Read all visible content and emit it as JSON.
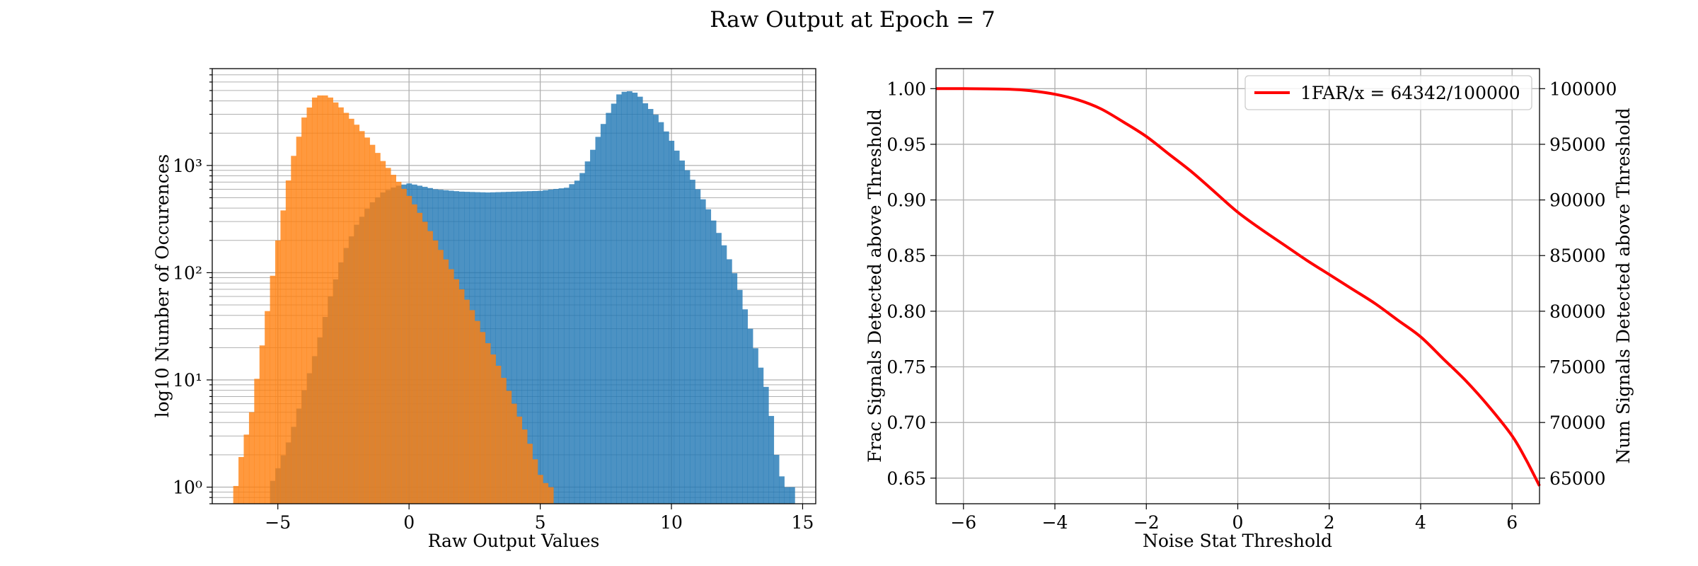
{
  "figure": {
    "title": "Raw Output at Epoch = 7"
  },
  "chart_data": [
    {
      "type": "histogram",
      "xlabel": "Raw Output Values",
      "ylabel": "log10 Number of Occurences",
      "yscale": "log",
      "xlim": [
        -7.5,
        15.5
      ],
      "ylim": [
        0.7,
        8000
      ],
      "xticks": [
        -5,
        0,
        5,
        10,
        15
      ],
      "xtick_labels": [
        "−5",
        "0",
        "5",
        "10",
        "15"
      ],
      "yticks": [
        1,
        10,
        100,
        1000
      ],
      "ytick_labels": [
        "10⁰",
        "10¹",
        "10²",
        "10³"
      ],
      "grid": true,
      "series": [
        {
          "color": "#1f77b4",
          "alpha": 0.8,
          "curve": [
            [
              -5.3,
              1
            ],
            [
              -5,
              1.5
            ],
            [
              -4.5,
              3
            ],
            [
              -4,
              8
            ],
            [
              -3.5,
              20
            ],
            [
              -3,
              60
            ],
            [
              -2.5,
              150
            ],
            [
              -2,
              280
            ],
            [
              -1.5,
              430
            ],
            [
              -1,
              560
            ],
            [
              -0.5,
              640
            ],
            [
              0,
              680
            ],
            [
              0.5,
              640
            ],
            [
              1,
              600
            ],
            [
              2,
              570
            ],
            [
              3,
              560
            ],
            [
              4,
              570
            ],
            [
              5,
              580
            ],
            [
              6,
              620
            ],
            [
              6.5,
              750
            ],
            [
              7,
              1400
            ],
            [
              7.5,
              2800
            ],
            [
              8,
              4600
            ],
            [
              8.3,
              5000
            ],
            [
              8.7,
              4700
            ],
            [
              9,
              3800
            ],
            [
              9.5,
              2800
            ],
            [
              10,
              1700
            ],
            [
              10.5,
              1000
            ],
            [
              11,
              600
            ],
            [
              11.5,
              350
            ],
            [
              12,
              180
            ],
            [
              12.5,
              85
            ],
            [
              13,
              30
            ],
            [
              13.3,
              16
            ],
            [
              13.7,
              7
            ],
            [
              14,
              2
            ],
            [
              14.3,
              1
            ],
            [
              14.6,
              1
            ]
          ]
        },
        {
          "color": "#ff7f0e",
          "alpha": 0.8,
          "curve": [
            [
              -6.7,
              0.7
            ],
            [
              -6.5,
              1.5
            ],
            [
              -6,
              5
            ],
            [
              -5.5,
              30
            ],
            [
              -5,
              200
            ],
            [
              -4.5,
              1000
            ],
            [
              -4,
              2800
            ],
            [
              -3.6,
              4300
            ],
            [
              -3.3,
              4600
            ],
            [
              -3,
              4300
            ],
            [
              -2.5,
              3300
            ],
            [
              -2,
              2400
            ],
            [
              -1.5,
              1700
            ],
            [
              -1,
              1100
            ],
            [
              -0.5,
              760
            ],
            [
              0,
              520
            ],
            [
              0.5,
              330
            ],
            [
              1,
              200
            ],
            [
              1.5,
              120
            ],
            [
              2,
              70
            ],
            [
              2.5,
              40
            ],
            [
              3,
              22
            ],
            [
              3.5,
              12
            ],
            [
              4,
              6
            ],
            [
              4.5,
              3
            ],
            [
              5,
              1.3
            ],
            [
              5.3,
              1
            ],
            [
              5.6,
              1
            ]
          ]
        }
      ]
    },
    {
      "type": "line",
      "xlabel": "Noise Stat Threshold",
      "ylabel": "Frac Signals Detected above Threshold",
      "ylabel_right": "Num Signals Detected above Threshold",
      "xlim": [
        -6.6,
        6.6
      ],
      "ylim": [
        0.627,
        1.018
      ],
      "ylim_right": [
        62700,
        101800
      ],
      "xticks": [
        -6,
        -4,
        -2,
        0,
        2,
        4,
        6
      ],
      "xtick_labels": [
        "−6",
        "−4",
        "−2",
        "0",
        "2",
        "4",
        "6"
      ],
      "yticks": [
        0.65,
        0.7,
        0.75,
        0.8,
        0.85,
        0.9,
        0.95,
        1.0
      ],
      "ytick_labels": [
        "0.65",
        "0.70",
        "0.75",
        "0.80",
        "0.85",
        "0.90",
        "0.95",
        "1.00"
      ],
      "yticks_right": [
        65000,
        70000,
        75000,
        80000,
        85000,
        90000,
        95000,
        100000
      ],
      "ytick_labels_right": [
        "65000",
        "70000",
        "75000",
        "80000",
        "85000",
        "90000",
        "95000",
        "100000"
      ],
      "grid": true,
      "legend_position": "top-right",
      "series": [
        {
          "name": "1FAR/x = 64342/100000",
          "color": "#ff0000",
          "x": [
            -6.6,
            -6,
            -5,
            -4.5,
            -4,
            -3.5,
            -3,
            -2.5,
            -2,
            -1.5,
            -1,
            -0.5,
            0,
            0.5,
            1,
            1.5,
            2,
            2.5,
            3,
            3.5,
            4,
            4.5,
            5,
            5.5,
            6,
            6.3,
            6.6
          ],
          "y": [
            1.0,
            1.0,
            0.9995,
            0.998,
            0.995,
            0.99,
            0.982,
            0.97,
            0.957,
            0.941,
            0.925,
            0.907,
            0.889,
            0.874,
            0.86,
            0.846,
            0.833,
            0.82,
            0.807,
            0.792,
            0.777,
            0.757,
            0.737,
            0.714,
            0.688,
            0.667,
            0.643
          ]
        }
      ]
    }
  ]
}
